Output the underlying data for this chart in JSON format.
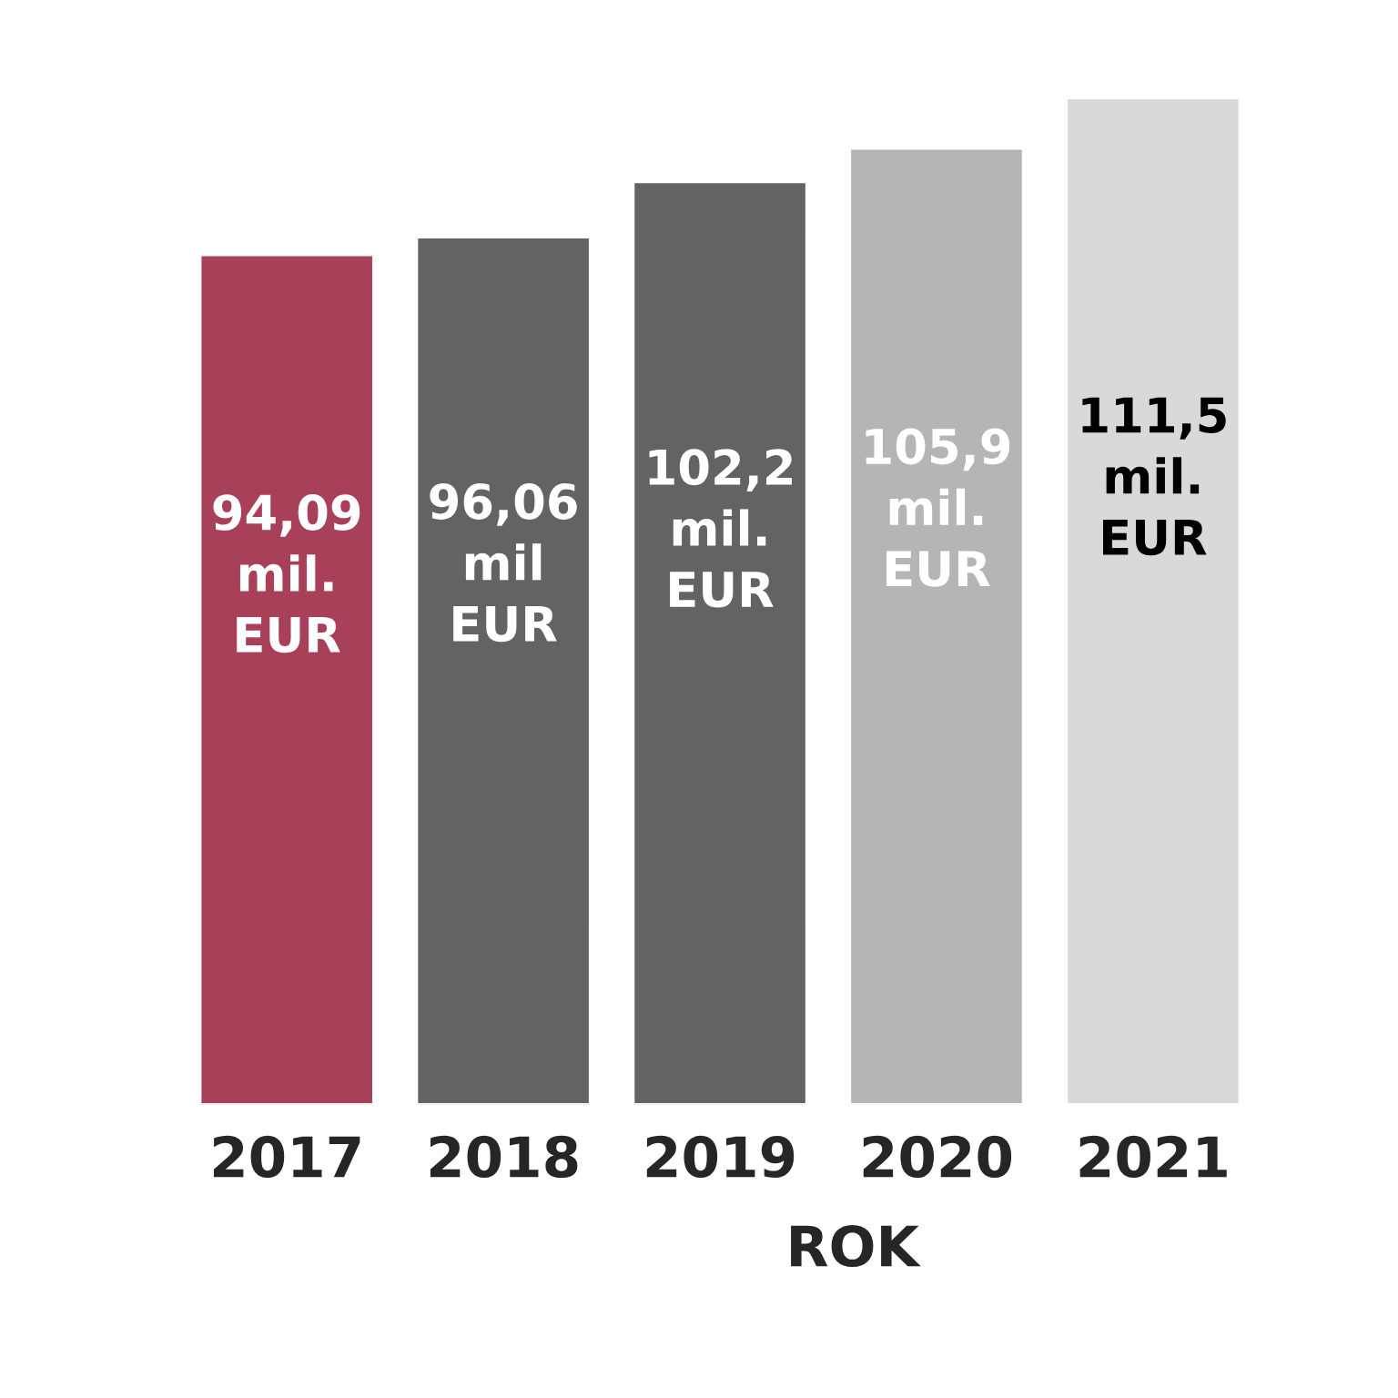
{
  "chart_data": {
    "type": "bar",
    "xlabel": "ROK",
    "categories": [
      "2017",
      "2018",
      "2019",
      "2020",
      "2021"
    ],
    "values": [
      94.09,
      96.06,
      102.2,
      105.9,
      111.5
    ],
    "colors": [
      "#a8405a",
      "#636363",
      "#636363",
      "#b5b5b5",
      "#d9d9d9"
    ],
    "value_labels": [
      "94,09\nmil.\nEUR",
      "96,06\nmil\nEUR",
      "102,2\nmil.\nEUR",
      "105,9\nmil.\nEUR",
      "111,5\nmil.\nEUR"
    ],
    "grid": false
  }
}
